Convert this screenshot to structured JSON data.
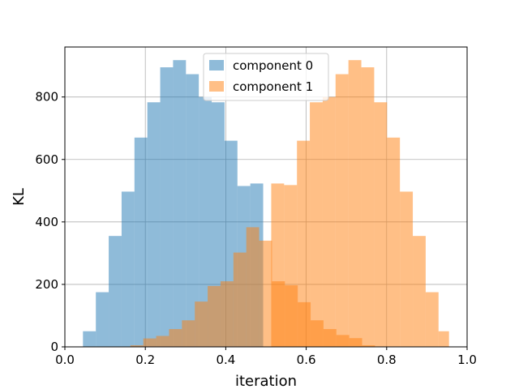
{
  "chart_data": {
    "type": "bar",
    "title": "",
    "xlabel": "iteration",
    "ylabel": "KL",
    "xlim": [
      0.0,
      1.0
    ],
    "ylim": [
      0,
      960
    ],
    "xticks": [
      0.0,
      0.2,
      0.4,
      0.6,
      0.8,
      1.0
    ],
    "xtick_labels": [
      "0.0",
      "0.2",
      "0.4",
      "0.6",
      "0.8",
      "1.0"
    ],
    "yticks": [
      0,
      200,
      400,
      600,
      800
    ],
    "ytick_labels": [
      "0",
      "200",
      "400",
      "600",
      "800"
    ],
    "grid": true,
    "legend_placement": "top-center",
    "series": [
      {
        "name": "component 0",
        "color": "#1f77b4",
        "opacity": 0.5,
        "bin_edges": [
          0.045,
          0.077,
          0.109,
          0.141,
          0.173,
          0.205,
          0.237,
          0.269,
          0.301,
          0.333,
          0.365,
          0.397,
          0.429,
          0.461,
          0.493
        ],
        "values": [
          50,
          175,
          355,
          497,
          670,
          783,
          895,
          918,
          873,
          800,
          783,
          660,
          515,
          523
        ]
      },
      {
        "name": "component 1",
        "color": "#ff7f0e",
        "opacity": 0.5,
        "bin_edges": [
          0.163,
          0.195,
          0.227,
          0.259,
          0.291,
          0.323,
          0.355,
          0.387,
          0.419,
          0.451,
          0.483,
          0.515,
          0.547,
          0.579,
          0.611,
          0.643,
          0.675,
          0.707,
          0.739,
          0.771,
          0.803,
          0.835,
          0.867,
          0.899,
          0.931,
          0.955
        ],
        "values": [
          5,
          27,
          35,
          57,
          85,
          145,
          195,
          210,
          302,
          383,
          340,
          210,
          197,
          143,
          85,
          57,
          38,
          28,
          5,
          0,
          0,
          0,
          0,
          0,
          0
        ]
      },
      {
        "name": "",
        "color": "#ff7f0e",
        "opacity": 0.5,
        "bin_edges": [
          0.513,
          0.545,
          0.577,
          0.609,
          0.641,
          0.673,
          0.705,
          0.737,
          0.769,
          0.801,
          0.833,
          0.865,
          0.897,
          0.929,
          0.955
        ],
        "values": [
          523,
          518,
          660,
          783,
          800,
          873,
          918,
          895,
          783,
          670,
          497,
          355,
          175,
          50
        ]
      }
    ]
  }
}
